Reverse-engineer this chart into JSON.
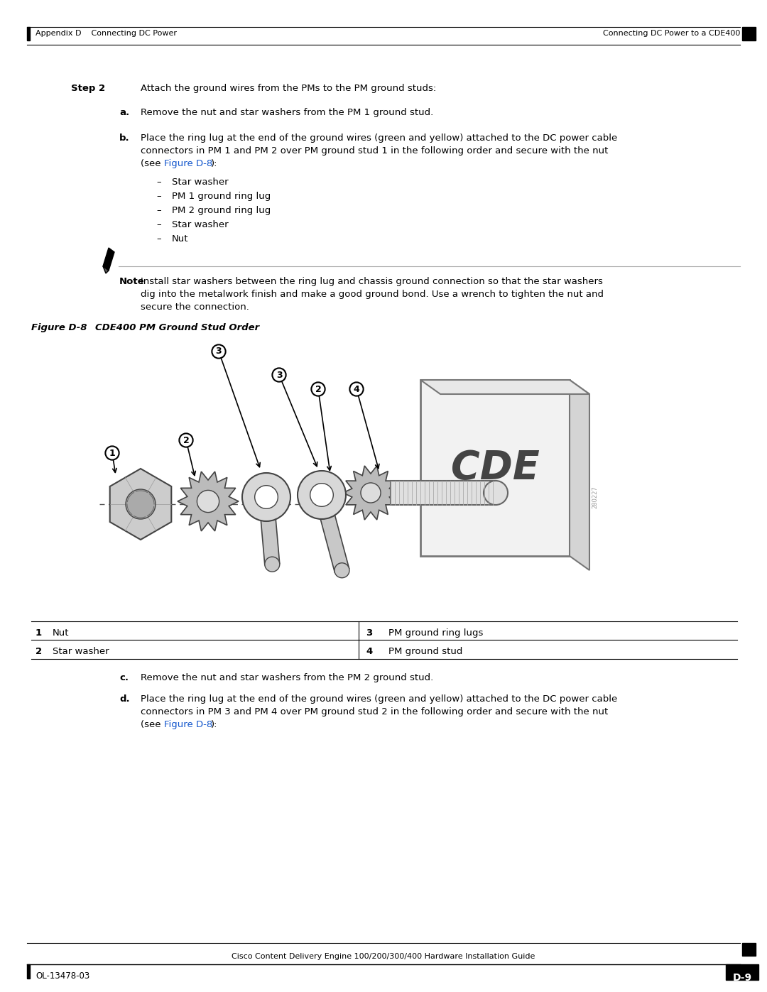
{
  "page_bg": "#ffffff",
  "header_left": "Appendix D    Connecting DC Power",
  "header_right": "Connecting DC Power to a CDE400",
  "footer_left": "OL-13478-03",
  "footer_center": "Cisco Content Delivery Engine 100/200/300/400 Hardware Installation Guide",
  "footer_right": "D-9",
  "step2_text": "Attach the ground wires from the PMs to the PM ground studs:",
  "item_a_text": "Remove the nut and star washers from the PM 1 ground stud.",
  "item_b_line1": "Place the ring lug at the end of the ground wires (green and yellow) attached to the DC power cable",
  "item_b_line2": "connectors in PM 1 and PM 2 over PM ground stud 1 in the following order and secure with the nut",
  "figure_d8_link": "Figure D-8",
  "bullets": [
    "Star washer",
    "PM 1 ground ring lug",
    "PM 2 ground ring lug",
    "Star washer",
    "Nut"
  ],
  "note_label": "Note",
  "note_line1": "Install star washers between the ring lug and chassis ground connection so that the star washers",
  "note_line2": "dig into the metalwork finish and make a good ground bond. Use a wrench to tighten the nut and",
  "note_line3": "secure the connection.",
  "figure_label": "Figure D-8",
  "figure_title": "CDE400 PM Ground Stud Order",
  "table_rows": [
    [
      "1",
      "Nut",
      "3",
      "PM ground ring lugs"
    ],
    [
      "2",
      "Star washer",
      "4",
      "PM ground stud"
    ]
  ],
  "item_c_text": "Remove the nut and star washers from the PM 2 ground stud.",
  "item_d_line1": "Place the ring lug at the end of the ground wires (green and yellow) attached to the DC power cable",
  "item_d_line2": "connectors in PM 3 and PM 4 over PM ground stud 2 in the following order and secure with the nut",
  "link_color": "#1155CC",
  "watermark_id": "280227"
}
